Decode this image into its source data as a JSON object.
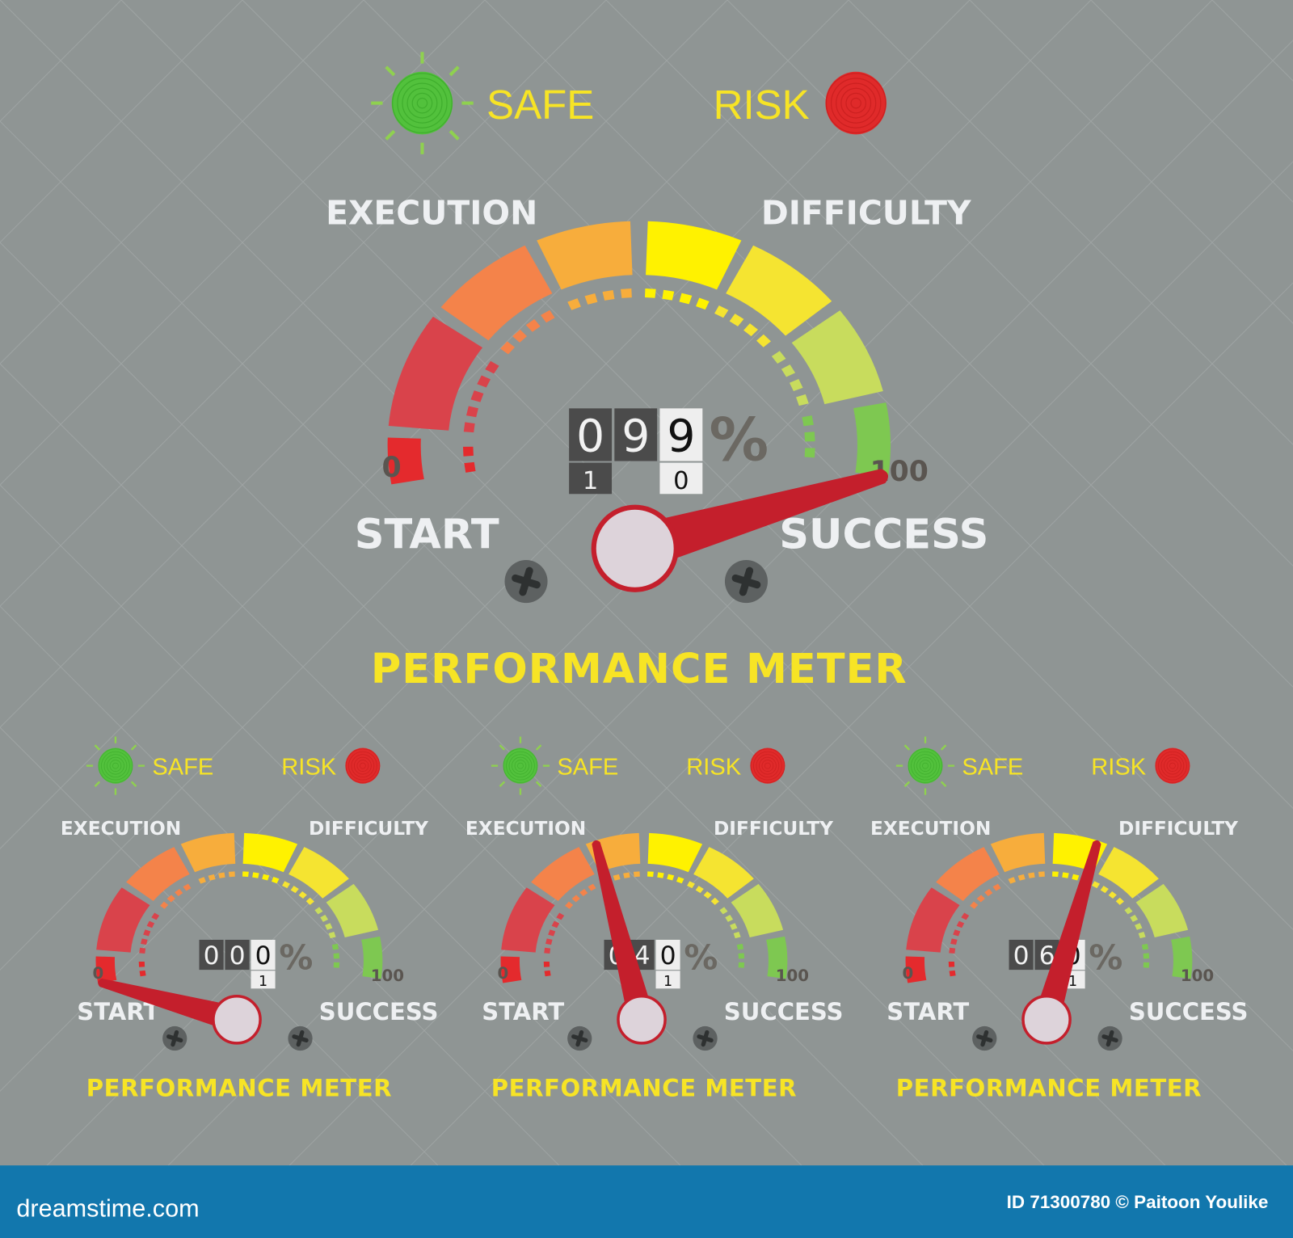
{
  "colors": {
    "background": "#8f9594",
    "banner": "#1277ad",
    "title": "#f7e425",
    "label": "#eef0f2",
    "needle": "#c41f2c",
    "pivot": "#ddd3da",
    "safe_light": "#52c13c",
    "risk_light": "#e02a2a",
    "segments": [
      "#e42a2d",
      "#d9434b",
      "#f4834a",
      "#f7ad3c",
      "#fff200",
      "#f5e431",
      "#c8dc5d",
      "#7ec851"
    ]
  },
  "gauges": [
    {
      "id": "main",
      "safe_label": "SAFE",
      "risk_label": "RISK",
      "execution_label": "EXECUTION",
      "difficulty_label": "DIFFICULTY",
      "min_label": "0",
      "max_label": "100",
      "start_label": "START",
      "success_label": "SUCCESS",
      "title": "PERFORMANCE METER",
      "value": 99,
      "readout": [
        "0",
        "9",
        "9"
      ],
      "readout_next": [
        "1",
        "",
        "0"
      ],
      "percent": "%"
    },
    {
      "id": "small-1",
      "safe_label": "SAFE",
      "risk_label": "RISK",
      "execution_label": "EXECUTION",
      "difficulty_label": "DIFFICULTY",
      "min_label": "0",
      "max_label": "100",
      "start_label": "START",
      "success_label": "SUCCESS",
      "title": "PERFORMANCE METER",
      "value": 0,
      "readout": [
        "0",
        "0",
        "0"
      ],
      "readout_next": [
        "",
        "",
        "1"
      ],
      "percent": "%"
    },
    {
      "id": "small-2",
      "safe_label": "SAFE",
      "risk_label": "RISK",
      "execution_label": "EXECUTION",
      "difficulty_label": "DIFFICULTY",
      "min_label": "0",
      "max_label": "100",
      "start_label": "START",
      "success_label": "SUCCESS",
      "title": "PERFORMANCE METER",
      "value": 40,
      "readout": [
        "0",
        "4",
        "0"
      ],
      "readout_next": [
        "",
        "",
        "1"
      ],
      "percent": "%"
    },
    {
      "id": "small-3",
      "safe_label": "SAFE",
      "risk_label": "RISK",
      "execution_label": "EXECUTION",
      "difficulty_label": "DIFFICULTY",
      "min_label": "0",
      "max_label": "100",
      "start_label": "START",
      "success_label": "SUCCESS",
      "title": "PERFORMANCE METER",
      "value": 60,
      "readout": [
        "0",
        "6",
        "0"
      ],
      "readout_next": [
        "",
        "",
        "1"
      ],
      "percent": "%"
    }
  ],
  "banner": {
    "logo": "dreamstime.com",
    "credit": "ID 71300780 © Paitoon Youlike"
  }
}
